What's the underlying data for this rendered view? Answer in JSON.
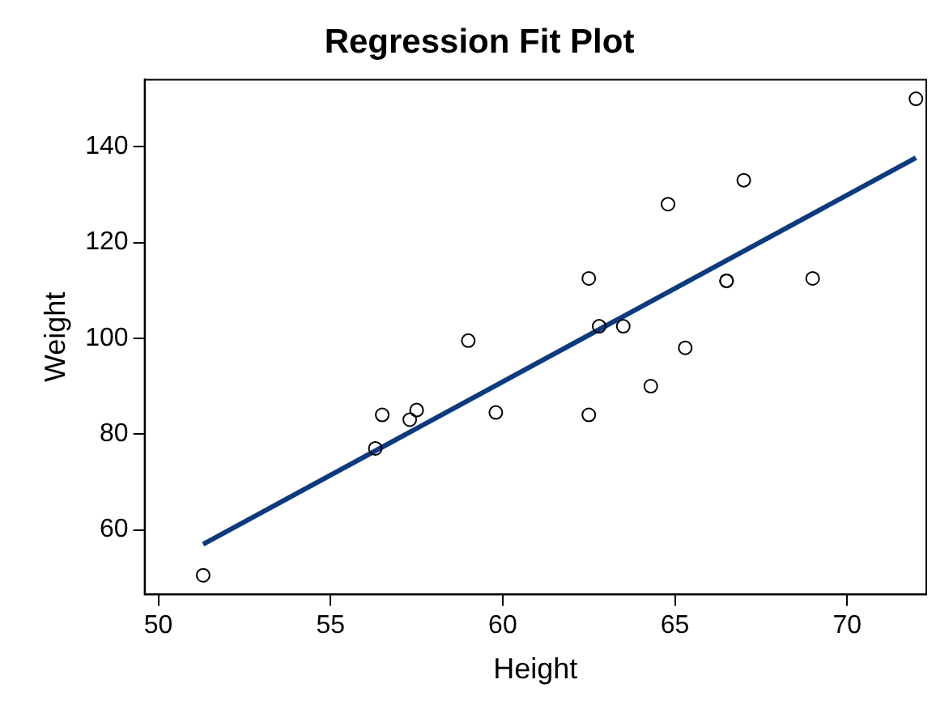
{
  "chart_data": {
    "type": "scatter",
    "title": "Regression Fit Plot",
    "xlabel": "Height",
    "ylabel": "Weight",
    "series": [
      {
        "type": "scatter",
        "color": "#000000",
        "marker": "circle",
        "x": [
          69.0,
          56.5,
          65.3,
          62.8,
          63.5,
          57.3,
          59.8,
          62.5,
          62.5,
          59.0,
          51.3,
          64.3,
          56.3,
          66.5,
          72.0,
          64.8,
          67.0,
          57.5,
          66.5
        ],
        "values": [
          112.5,
          84.0,
          98.0,
          102.5,
          102.5,
          83.0,
          84.5,
          112.5,
          84.0,
          99.5,
          50.5,
          90.0,
          77.0,
          112.0,
          150.0,
          128.0,
          133.0,
          85.0,
          112.0
        ]
      },
      {
        "type": "line",
        "color": "#0b3a7e",
        "marker": "none",
        "line_style": "solid",
        "x": [
          51.3,
          72.0
        ],
        "values": [
          57.0,
          137.7
        ]
      }
    ],
    "xlim": [
      49.6,
      72.3
    ],
    "ylim": [
      46.5,
      154
    ],
    "xticks": [
      50,
      55,
      60,
      65,
      70
    ],
    "yticks": [
      60,
      80,
      100,
      120,
      140
    ],
    "grid": false,
    "legend": false
  }
}
